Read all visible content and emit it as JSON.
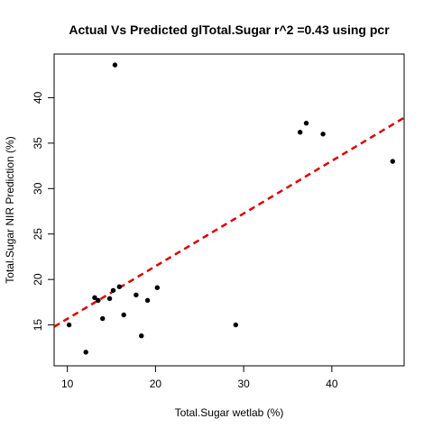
{
  "chart_data": {
    "type": "scatter",
    "title": "Actual Vs Predicted glTotal.Sugar r^2 =0.43 using pcr",
    "xlabel": "Total.Sugar wetlab (%)",
    "ylabel": "Total.Sugar NIR Prediction (%)",
    "xlim": [
      8.5,
      48.2
    ],
    "ylim": [
      10.5,
      44.8
    ],
    "x_ticks": [
      10,
      20,
      30,
      40
    ],
    "y_ticks": [
      15,
      20,
      25,
      30,
      35,
      40
    ],
    "x_tick_labels": [
      "10",
      "20",
      "30",
      "40"
    ],
    "y_tick_labels": [
      "15",
      "20",
      "25",
      "30",
      "35",
      "40"
    ],
    "grid": false,
    "point_color": "#000000",
    "line_color": "#dd0000",
    "series": [
      {
        "type": "scatter",
        "x": [
          10.2,
          12.1,
          13.1,
          13.5,
          14.0,
          14.8,
          15.2,
          15.9,
          16.4,
          17.8,
          18.4,
          19.1,
          20.2,
          29.1,
          36.4,
          37.1,
          39.0,
          46.9,
          15.4
        ],
        "y": [
          15.0,
          12.0,
          18.0,
          17.7,
          15.7,
          17.9,
          18.8,
          19.2,
          16.1,
          18.3,
          13.8,
          17.7,
          19.1,
          15.0,
          36.2,
          37.2,
          36.0,
          33.0,
          43.6
        ]
      },
      {
        "type": "line",
        "style": "dashed",
        "x": [
          8.5,
          48.2
        ],
        "y": [
          14.8,
          37.8
        ]
      }
    ]
  }
}
